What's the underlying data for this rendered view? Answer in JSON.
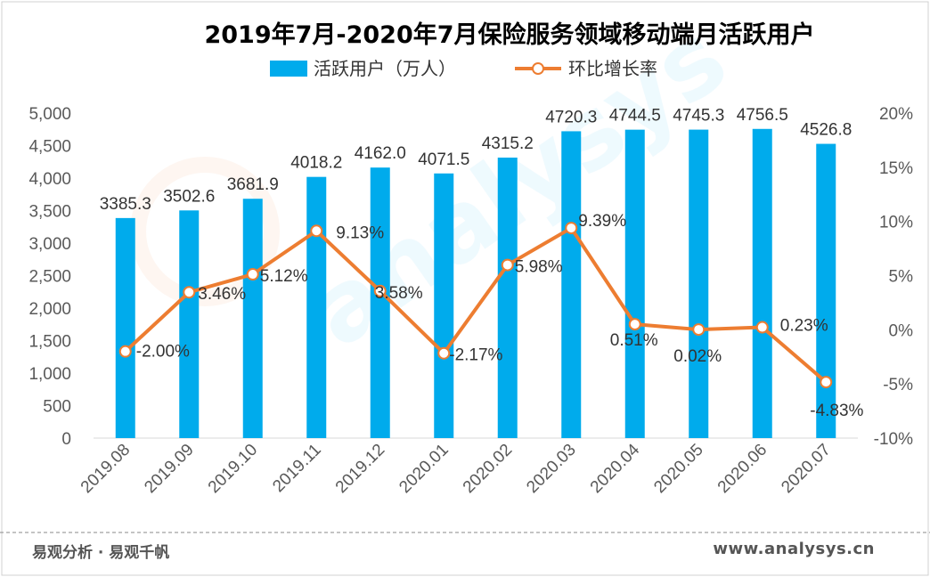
{
  "chart_data": {
    "type": "bar",
    "title": "2019年7月-2020年7月保险服务领域移动端月活跃用户",
    "categories": [
      "2019.08",
      "2019.09",
      "2019.10",
      "2019.11",
      "2019.12",
      "2020.01",
      "2020.02",
      "2020.03",
      "2020.04",
      "2020.05",
      "2020.06",
      "2020.07"
    ],
    "series": [
      {
        "name": "活跃用户（万人）",
        "type": "bar",
        "axis": "left",
        "values": [
          3385.3,
          3502.6,
          3681.9,
          4018.2,
          4162.0,
          4071.5,
          4315.2,
          4720.3,
          4744.5,
          4745.3,
          4756.5,
          4526.8
        ],
        "labels": [
          "3385.3",
          "3502.6",
          "3681.9",
          "4018.2",
          "4162.0",
          "4071.5",
          "4315.2",
          "4720.3",
          "4744.5",
          "4745.3",
          "4756.5",
          "4526.8"
        ]
      },
      {
        "name": "环比增长率",
        "type": "line",
        "axis": "right",
        "values": [
          -2.0,
          3.46,
          5.12,
          9.13,
          3.58,
          -2.17,
          5.98,
          9.39,
          0.51,
          0.02,
          0.23,
          -4.83
        ],
        "labels": [
          "-2.00%",
          "3.46%",
          "5.12%",
          "9.13%",
          "3.58%",
          "-2.17%",
          "5.98%",
          "9.39%",
          "0.51%",
          "0.02%",
          "0.23%",
          "-4.83%"
        ]
      }
    ],
    "y_left": {
      "min": 0,
      "max": 5000,
      "ticks": [
        "0",
        "500",
        "1,000",
        "1,500",
        "2,000",
        "2,500",
        "3,000",
        "3,500",
        "4,000",
        "4,500",
        "5,000"
      ]
    },
    "y_right": {
      "min": -10,
      "max": 20,
      "ticks": [
        "-10%",
        "-5%",
        "0%",
        "5%",
        "10%",
        "15%",
        "20%"
      ]
    },
    "legend": "top",
    "grid": false,
    "colors": {
      "bar": "#00ABEC",
      "line": "#ED7D31",
      "marker_fill": "#ffffff",
      "axis_text": "#595959",
      "title": "#000000"
    }
  },
  "footer": {
    "left": "易观分析 · 易观千帆",
    "right": "www.analysys.cn"
  },
  "watermark": "analysys 易观分析"
}
